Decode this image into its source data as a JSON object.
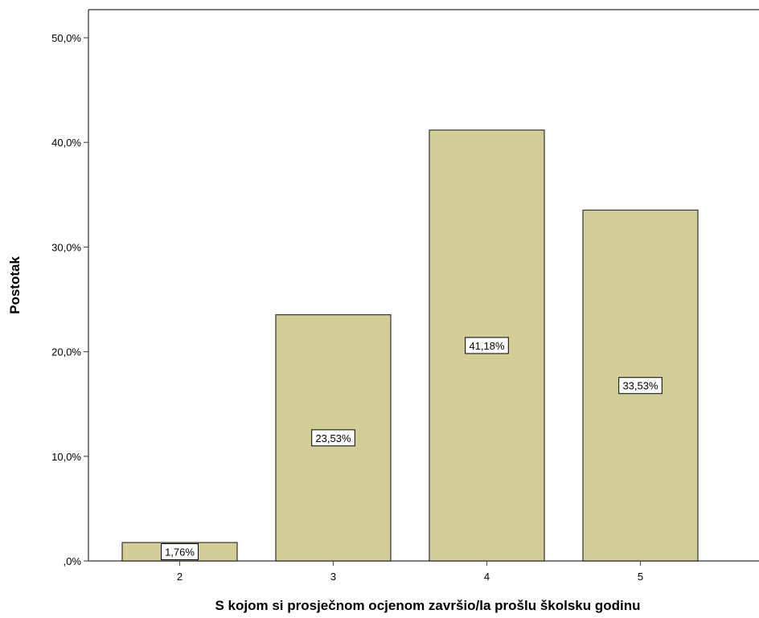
{
  "chart_data": {
    "type": "bar",
    "categories": [
      "2",
      "3",
      "4",
      "5"
    ],
    "values": [
      1.76,
      23.53,
      41.18,
      33.53
    ],
    "data_labels": [
      "1,76%",
      "23,53%",
      "41,18%",
      "33,53%"
    ],
    "xlabel": "S kojom si prosječnom ocjenom završio/la prošlu školsku godinu",
    "ylabel": "Postotak",
    "ylim": [
      0,
      50
    ],
    "yticks": [
      0,
      10,
      20,
      30,
      40,
      50
    ],
    "ytick_labels": [
      ",0%",
      "10,0%",
      "20,0%",
      "30,0%",
      "40,0%",
      "50,0%"
    ],
    "grid": false,
    "colors": {
      "bar_fill": "#d3ce97",
      "bar_stroke": "#333333",
      "axis": "#555555"
    }
  }
}
